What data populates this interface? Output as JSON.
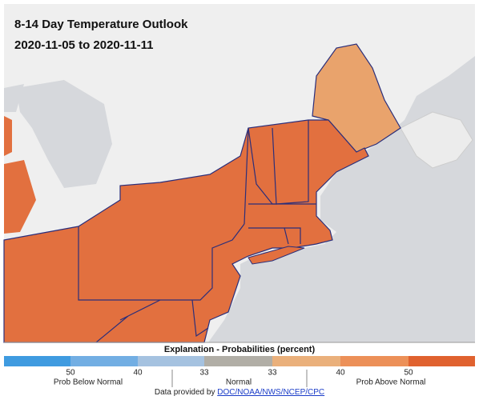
{
  "header": {
    "title": "8-14 Day Temperature Outlook",
    "dates": "2020-11-05 to 2020-11-11"
  },
  "legend": {
    "title": "Explanation - Probabilities (percent)",
    "ticks": [
      "50",
      "40",
      "33",
      "33",
      "40",
      "50"
    ],
    "labels": [
      "Prob Below Normal",
      "Normal",
      "Prob Above Normal"
    ]
  },
  "footer": {
    "text": "Data provided by",
    "link": "DOC/NOAA/NWS/NCEP/CPC"
  }
}
